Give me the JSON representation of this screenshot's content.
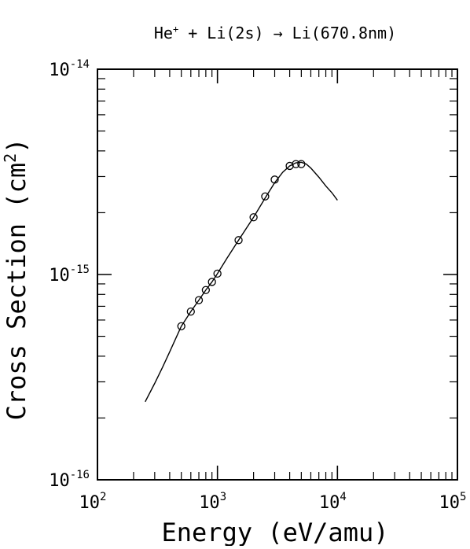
{
  "chart_data": {
    "type": "line",
    "title": "He⁺ + Li(2s) → Li(670.8nm)",
    "title_parts": {
      "before_sup": "He",
      "sup": "+",
      "after_sup": " + Li(2s) → Li(670.8nm)"
    },
    "xlabel": "Energy (eV/amu)",
    "ylabel": "Cross Section (cm²)",
    "ylabel_parts": {
      "before_sup": "Cross Section (cm",
      "sup": "2",
      "after_sup": ")"
    },
    "x_scale": "log",
    "y_scale": "log",
    "xlim": [
      100,
      100000
    ],
    "ylim": [
      1e-16,
      1e-14
    ],
    "x_ticks": [
      {
        "value": 100,
        "base": "10",
        "exp": "2"
      },
      {
        "value": 1000,
        "base": "10",
        "exp": "3"
      },
      {
        "value": 10000,
        "base": "10",
        "exp": "4"
      },
      {
        "value": 100000,
        "base": "10",
        "exp": "5"
      }
    ],
    "y_ticks": [
      {
        "value": 1e-16,
        "base": "10",
        "exp": "-16"
      },
      {
        "value": 1e-15,
        "base": "10",
        "exp": "-15"
      },
      {
        "value": 1e-14,
        "base": "10",
        "exp": "-14"
      }
    ],
    "grid": false,
    "legend": "none",
    "series": [
      {
        "kind": "fit-curve",
        "x": [
          250,
          300,
          350,
          400,
          500,
          600,
          700,
          800,
          900,
          1000,
          1200,
          1500,
          2000,
          2500,
          3000,
          3500,
          4000,
          4500,
          5000,
          5500,
          6000,
          7000,
          8000,
          9000,
          10000
        ],
        "y": [
          2.4e-16,
          2.95e-16,
          3.55e-16,
          4.2e-16,
          5.6e-16,
          6.6e-16,
          7.5e-16,
          8.4e-16,
          9.2e-16,
          1.01e-15,
          1.2e-15,
          1.47e-15,
          1.9e-15,
          2.36e-15,
          2.8e-15,
          3.15e-15,
          3.38e-15,
          3.5e-15,
          3.52e-15,
          3.45e-15,
          3.3e-15,
          2.98e-15,
          2.7e-15,
          2.5e-15,
          2.3e-15
        ]
      },
      {
        "kind": "measured-points",
        "marker": "open-circle",
        "x": [
          500,
          600,
          700,
          800,
          900,
          1000,
          1500,
          2000,
          2500,
          3000,
          4000,
          4500,
          5000
        ],
        "y": [
          5.6e-16,
          6.6e-16,
          7.5e-16,
          8.4e-16,
          9.2e-16,
          1.01e-15,
          1.47e-15,
          1.9e-15,
          2.4e-15,
          2.9e-15,
          3.38e-15,
          3.45e-15,
          3.45e-15
        ]
      }
    ]
  }
}
